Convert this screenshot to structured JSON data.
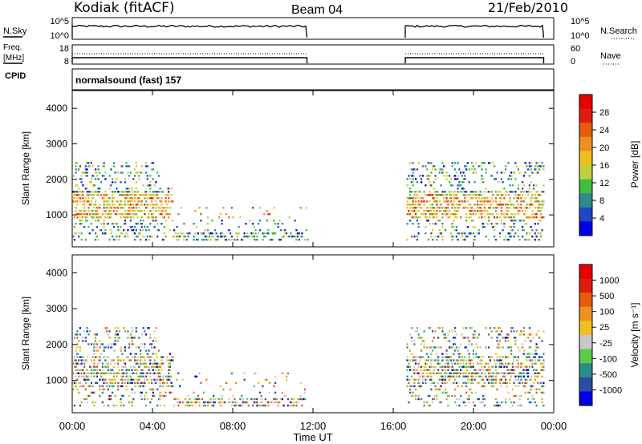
{
  "header": {
    "station": "Kodiak (fitACF)",
    "beam": "Beam 04",
    "date": "21/Feb/2010"
  },
  "noise_panel": {
    "left_label": "N.Sky",
    "right_label": "N.Search",
    "left_ticks": [
      "10^5",
      "10^0"
    ],
    "right_ticks": [
      "10^5",
      "10^0"
    ]
  },
  "freq_panel": {
    "left_label_1": "Freq.",
    "left_label_2": "[MHz]",
    "right_label": "Nave",
    "left_ticks": [
      "18",
      "8"
    ],
    "right_ticks": [
      "60",
      "0"
    ]
  },
  "cpid_panel": {
    "label": "CPID",
    "program": "normalsound (fast) 157"
  },
  "power_panel": {
    "ylabel": "Slant Range [km]",
    "yticks": [
      "4000",
      "3000",
      "2000",
      "1000"
    ],
    "colorbar_label": "Power [dB]",
    "colorbar_ticks": [
      "28",
      "24",
      "20",
      "16",
      "12",
      "8",
      "4"
    ],
    "colors": [
      "#0000e6",
      "#1e46c8",
      "#2e8b8b",
      "#3fbf3f",
      "#bfd23c",
      "#f0c020",
      "#f09020",
      "#e85a10",
      "#dc1e10",
      "#e60000"
    ]
  },
  "velocity_panel": {
    "ylabel": "Slant Range [km]",
    "yticks": [
      "4000",
      "3000",
      "2000",
      "1000"
    ],
    "colorbar_label": "Velocity [m s⁻¹]",
    "colorbar_ticks": [
      "1000",
      "500",
      "100",
      "25",
      "-25",
      "-100",
      "-500",
      "-1000"
    ],
    "colors": [
      "#0000e6",
      "#2a4fa0",
      "#2e8b8b",
      "#5ec84a",
      "#c8c8c8",
      "#f0c020",
      "#f09020",
      "#e85a10",
      "#dc1e10",
      "#e60000"
    ]
  },
  "x_axis": {
    "label": "Time UT",
    "ticks": [
      "00:00",
      "04:00",
      "08:00",
      "12:00",
      "16:00",
      "20:00",
      "00:00"
    ]
  },
  "chart_data": {
    "type": "heatmap",
    "x_range_hours": [
      0,
      24
    ],
    "y_range_km": [
      100,
      4500
    ],
    "data_gap_hours": [
      11.7,
      16.6
    ],
    "power_dB_range": [
      0,
      30
    ],
    "velocity_ms_range": [
      -1000,
      1000
    ]
  }
}
